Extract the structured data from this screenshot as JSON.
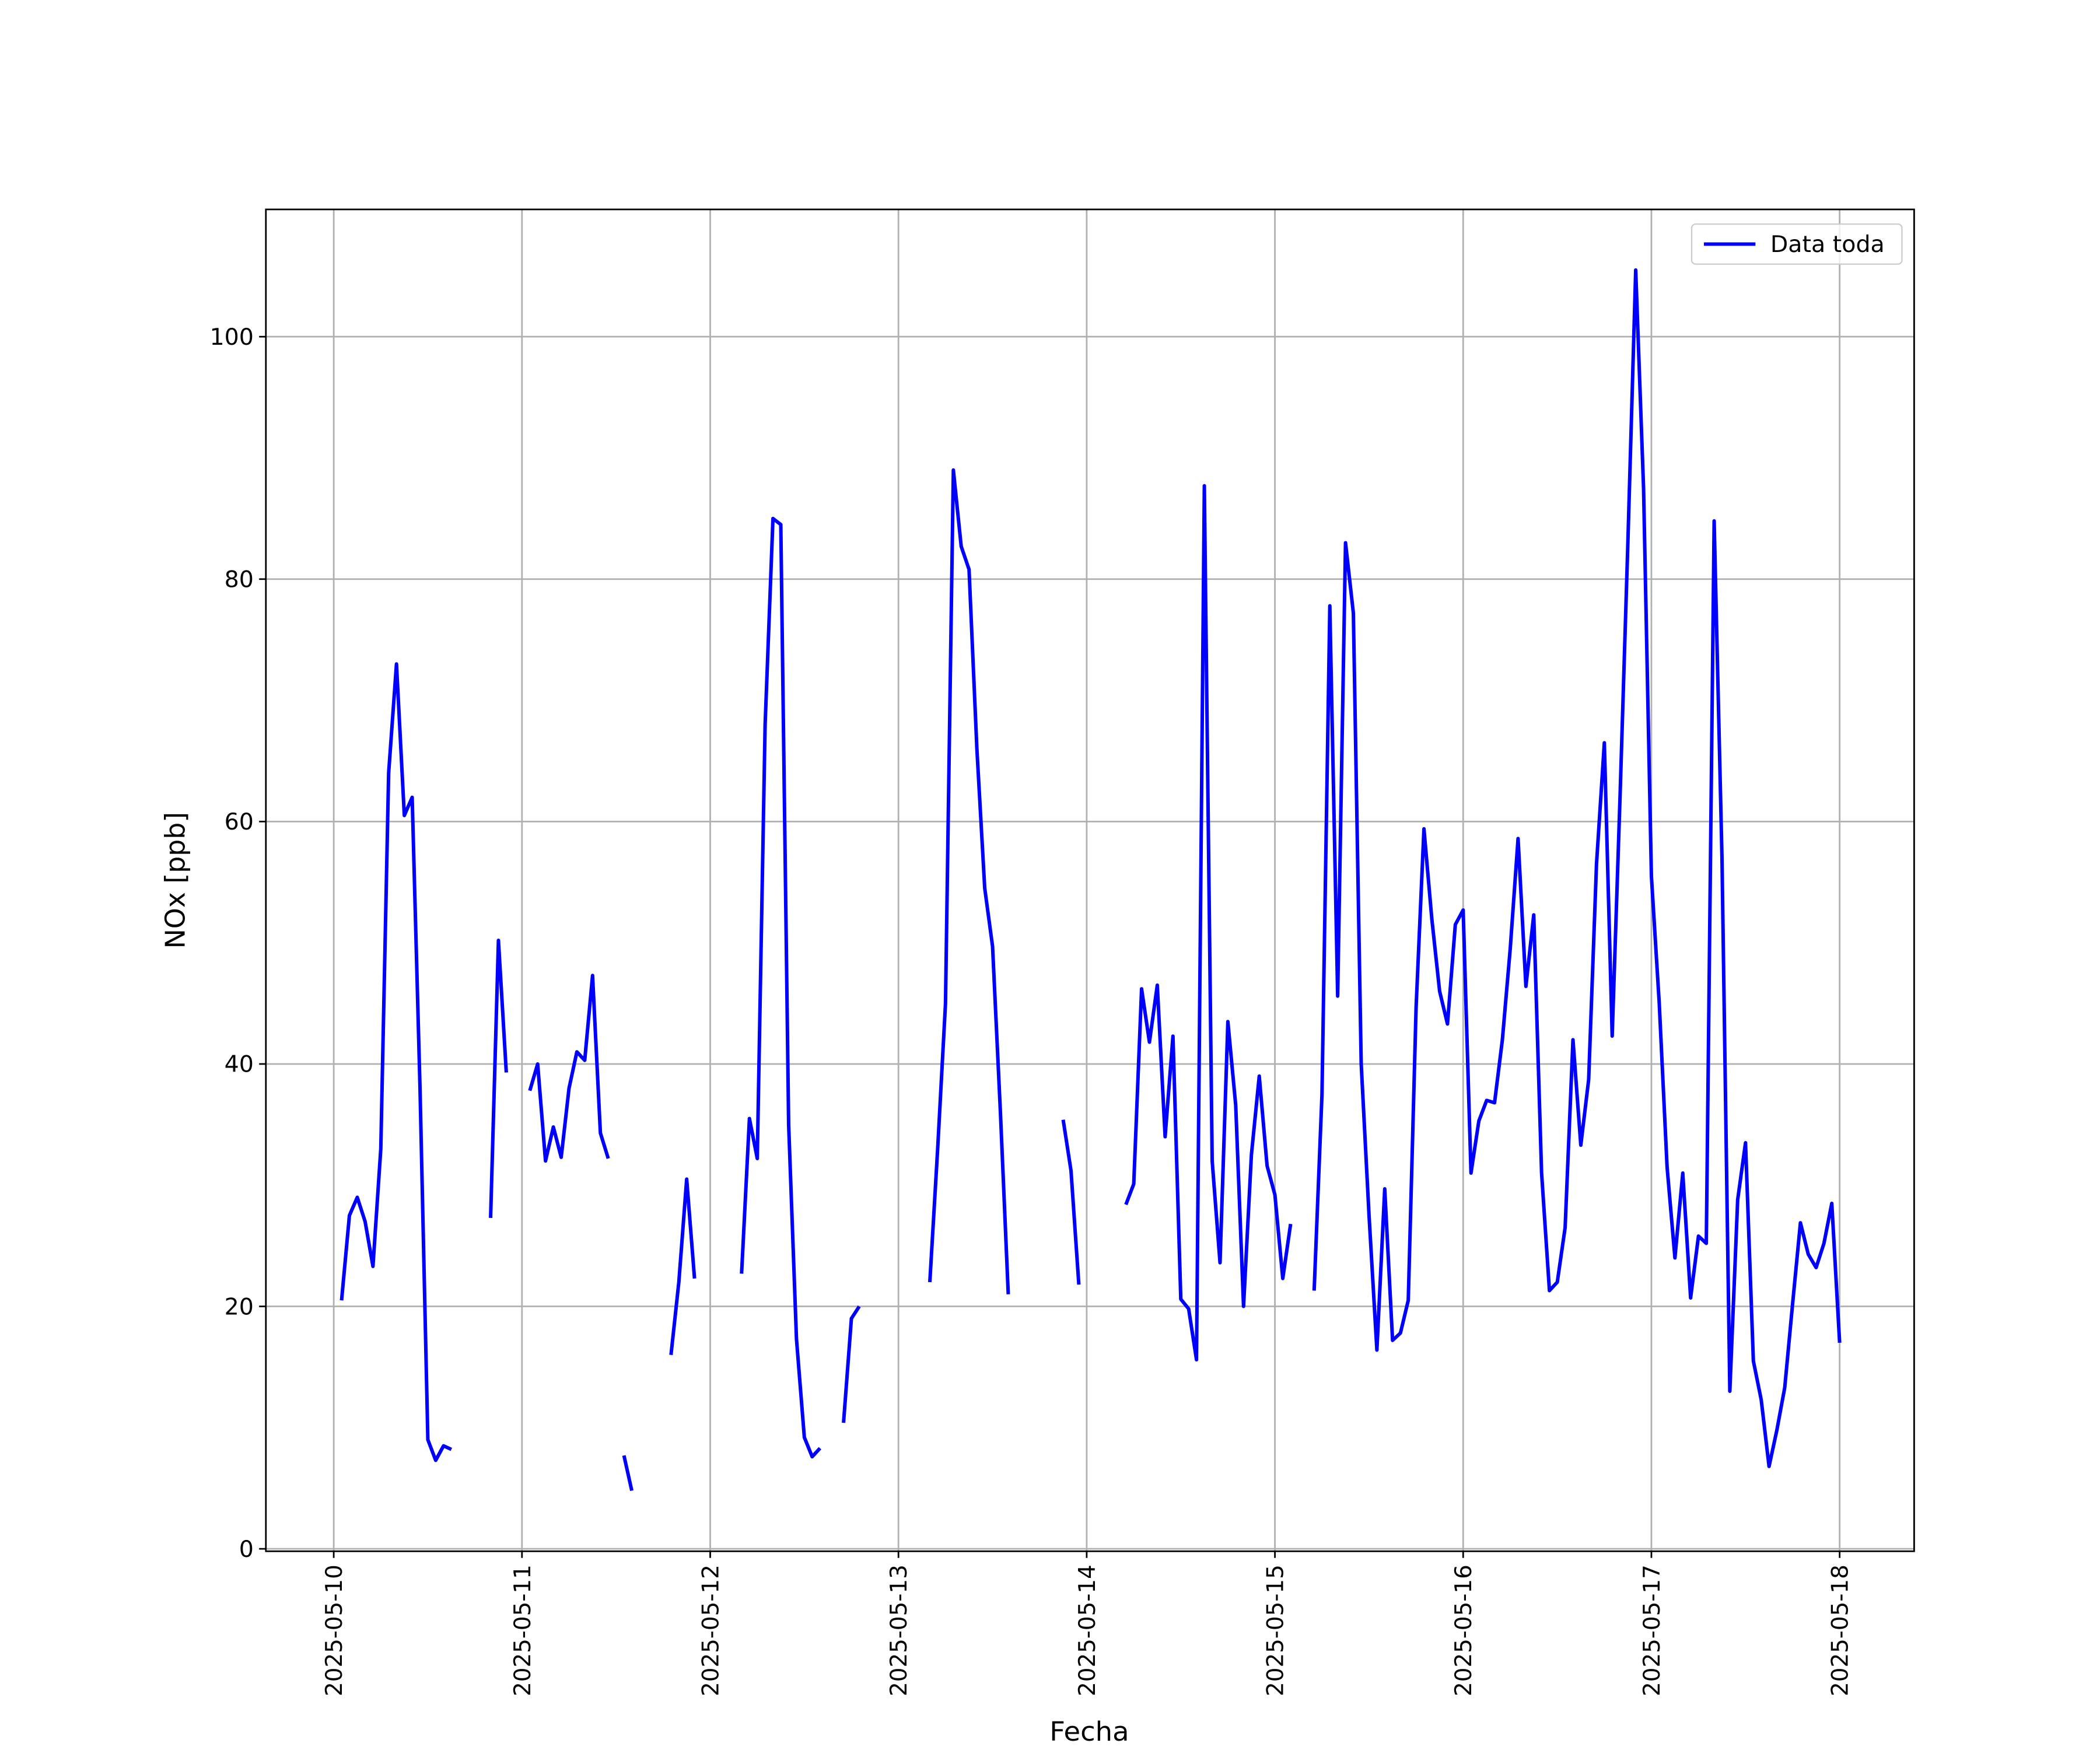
{
  "chart_data": {
    "type": "line",
    "x_label": "Fecha",
    "y_label": "NOx [ppb]",
    "x": [
      "2025-05-10 01:00",
      "2025-05-10 02:00",
      "2025-05-10 03:00",
      "2025-05-10 04:00",
      "2025-05-10 05:00",
      "2025-05-10 06:00",
      "2025-05-10 07:00",
      "2025-05-10 08:00",
      "2025-05-10 09:00",
      "2025-05-10 10:00",
      "2025-05-10 11:00",
      "2025-05-10 12:00",
      "2025-05-10 13:00",
      "2025-05-10 14:00",
      "2025-05-10 15:00",
      "2025-05-10 16:00",
      "2025-05-10 20:00",
      "2025-05-10 21:00",
      "2025-05-10 22:00",
      "2025-05-10 23:00",
      "2025-05-11 01:00",
      "2025-05-11 02:00",
      "2025-05-11 03:00",
      "2025-05-11 04:00",
      "2025-05-11 05:00",
      "2025-05-11 06:00",
      "2025-05-11 07:00",
      "2025-05-11 08:00",
      "2025-05-11 09:00",
      "2025-05-11 10:00",
      "2025-05-11 11:00",
      "2025-05-11 12:00",
      "2025-05-11 13:00",
      "2025-05-11 14:00",
      "2025-05-11 15:00",
      "2025-05-11 19:00",
      "2025-05-11 20:00",
      "2025-05-11 21:00",
      "2025-05-11 22:00",
      "2025-05-11 23:00",
      "2025-05-12 04:00",
      "2025-05-12 05:00",
      "2025-05-12 06:00",
      "2025-05-12 07:00",
      "2025-05-12 08:00",
      "2025-05-12 09:00",
      "2025-05-12 10:00",
      "2025-05-12 11:00",
      "2025-05-12 12:00",
      "2025-05-12 13:00",
      "2025-05-12 14:00",
      "2025-05-12 15:00",
      "2025-05-12 17:00",
      "2025-05-12 18:00",
      "2025-05-12 19:00",
      "2025-05-12 20:00",
      "2025-05-13 04:00",
      "2025-05-13 05:00",
      "2025-05-13 06:00",
      "2025-05-13 07:00",
      "2025-05-13 08:00",
      "2025-05-13 09:00",
      "2025-05-13 10:00",
      "2025-05-13 11:00",
      "2025-05-13 12:00",
      "2025-05-13 13:00",
      "2025-05-13 14:00",
      "2025-05-13 15:00",
      "2025-05-13 21:00",
      "2025-05-13 22:00",
      "2025-05-13 23:00",
      "2025-05-14 00:00",
      "2025-05-14 05:00",
      "2025-05-14 06:00",
      "2025-05-14 07:00",
      "2025-05-14 08:00",
      "2025-05-14 09:00",
      "2025-05-14 10:00",
      "2025-05-14 11:00",
      "2025-05-14 12:00",
      "2025-05-14 13:00",
      "2025-05-14 14:00",
      "2025-05-14 15:00",
      "2025-05-14 16:00",
      "2025-05-14 17:00",
      "2025-05-14 18:00",
      "2025-05-14 19:00",
      "2025-05-14 20:00",
      "2025-05-14 21:00",
      "2025-05-14 22:00",
      "2025-05-14 23:00",
      "2025-05-15 00:00",
      "2025-05-15 01:00",
      "2025-05-15 02:00",
      "2025-05-15 03:00",
      "2025-05-15 05:00",
      "2025-05-15 06:00",
      "2025-05-15 07:00",
      "2025-05-15 08:00",
      "2025-05-15 09:00",
      "2025-05-15 10:00",
      "2025-05-15 11:00",
      "2025-05-15 12:00",
      "2025-05-15 13:00",
      "2025-05-15 14:00",
      "2025-05-15 15:00",
      "2025-05-15 16:00",
      "2025-05-15 17:00",
      "2025-05-15 18:00",
      "2025-05-15 19:00",
      "2025-05-15 20:00",
      "2025-05-15 21:00",
      "2025-05-15 22:00",
      "2025-05-15 23:00",
      "2025-05-16 00:00",
      "2025-05-16 01:00",
      "2025-05-16 02:00",
      "2025-05-16 03:00",
      "2025-05-16 04:00",
      "2025-05-16 05:00",
      "2025-05-16 06:00",
      "2025-05-16 07:00",
      "2025-05-16 08:00",
      "2025-05-16 09:00",
      "2025-05-16 10:00",
      "2025-05-16 11:00",
      "2025-05-16 12:00",
      "2025-05-16 13:00",
      "2025-05-16 14:00",
      "2025-05-16 15:00",
      "2025-05-16 16:00",
      "2025-05-16 17:00",
      "2025-05-16 18:00",
      "2025-05-16 19:00",
      "2025-05-16 20:00",
      "2025-05-16 21:00",
      "2025-05-16 22:00",
      "2025-05-16 23:00",
      "2025-05-17 00:00",
      "2025-05-17 01:00",
      "2025-05-17 02:00",
      "2025-05-17 03:00",
      "2025-05-17 04:00",
      "2025-05-17 05:00",
      "2025-05-17 06:00",
      "2025-05-17 07:00",
      "2025-05-17 08:00",
      "2025-05-17 09:00",
      "2025-05-17 10:00",
      "2025-05-17 11:00",
      "2025-05-17 12:00",
      "2025-05-17 13:00",
      "2025-05-17 14:00",
      "2025-05-17 15:00",
      "2025-05-17 16:00",
      "2025-05-17 17:00",
      "2025-05-17 18:00",
      "2025-05-17 19:00",
      "2025-05-17 20:00",
      "2025-05-17 21:00",
      "2025-05-17 22:00",
      "2025-05-17 23:00",
      "2025-05-18 00:00"
    ],
    "series": [
      {
        "name": "Data toda",
        "color": "#0000ff",
        "values": [
          20.5,
          27.5,
          29,
          27,
          23.3,
          33,
          64,
          73,
          60.5,
          62,
          38,
          9,
          7.3,
          8.5,
          8.2,
          null,
          27.3,
          50.2,
          39.3,
          null,
          37.8,
          40,
          32,
          34.8,
          32.3,
          38,
          41,
          40.3,
          47.3,
          34.3,
          32.2,
          null,
          7.7,
          4.8,
          null,
          16,
          22,
          30.5,
          22.3,
          null,
          22.7,
          35.5,
          32.2,
          68,
          85,
          84.5,
          35,
          17.3,
          9.2,
          7.6,
          8.3,
          null,
          10.4,
          19,
          20,
          null,
          22,
          33,
          45,
          89,
          82.7,
          80.8,
          66,
          54.5,
          49.7,
          36,
          21,
          null,
          35.4,
          31.2,
          21.8,
          null,
          28.4,
          30.1,
          46.2,
          41.8,
          46.5,
          34,
          42.3,
          20.6,
          19.8,
          15.6,
          87.7,
          32,
          23.6,
          43.5,
          36.6,
          20,
          32.5,
          39,
          31.6,
          29.2,
          22.3,
          26.8,
          null,
          21.3,
          37.5,
          77.8,
          45.6,
          83,
          77.2,
          40,
          27.5,
          16.4,
          29.7,
          17.2,
          17.8,
          20.5,
          44.7,
          59.4,
          52,
          46,
          43.3,
          51.5,
          52.7,
          31,
          35.3,
          37,
          36.8,
          42,
          49.5,
          58.6,
          46.4,
          52.3,
          31,
          21.3,
          22,
          26.5,
          42,
          33.3,
          38.7,
          56.5,
          66.5,
          42.3,
          62,
          83,
          105.5,
          87.5,
          55.5,
          45,
          31.5,
          24,
          31,
          20.7,
          25.8,
          25.2,
          84.8,
          57,
          13,
          28.8,
          33.5,
          15.5,
          12.3,
          6.8,
          9.8,
          13.3,
          20.2,
          26.9,
          24.3,
          23.2,
          25.2,
          28.5,
          17
        ]
      }
    ],
    "xlim": [
      "2025-05-09 15:21",
      "2025-05-18 09:30"
    ],
    "xticks": [
      "2025-05-10",
      "2025-05-11",
      "2025-05-12",
      "2025-05-13",
      "2025-05-14",
      "2025-05-15",
      "2025-05-16",
      "2025-05-17",
      "2025-05-18"
    ],
    "ylim": [
      -0.2,
      110.5
    ],
    "yticks": [
      0,
      20,
      40,
      60,
      80,
      100
    ],
    "grid": true,
    "legend": "upper right"
  }
}
